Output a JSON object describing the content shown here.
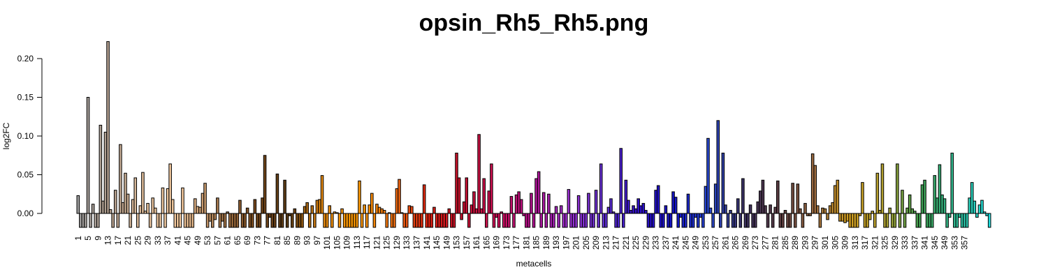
{
  "chart_data": {
    "type": "bar",
    "title": "opsin_Rh5_Rh5.png",
    "xlabel": "metacells",
    "ylabel": "log2FC",
    "ylim": [
      -0.02,
      0.225
    ],
    "yticks": [
      "0.00",
      "0.05",
      "0.10",
      "0.15",
      "0.20"
    ],
    "x_start": 1,
    "x_end": 357,
    "xtick_step": 4,
    "grid": false,
    "legend": "none",
    "values": [
      0.023,
      -0.018,
      -0.018,
      -0.018,
      0.15,
      -0.018,
      0.012,
      -0.018,
      -0.018,
      0.114,
      0.016,
      0.105,
      0.222,
      0.005,
      -0.018,
      0.03,
      -0.018,
      0.089,
      0.014,
      0.052,
      0.025,
      -0.018,
      0.018,
      0.046,
      -0.018,
      0.01,
      0.053,
      0.003,
      0.013,
      -0.018,
      0.02,
      0.007,
      -0.018,
      -0.018,
      0.033,
      -0.018,
      0.032,
      0.064,
      0.018,
      -0.018,
      -0.018,
      -0.018,
      0.033,
      -0.018,
      -0.018,
      -0.018,
      -0.018,
      0.019,
      0.009,
      0.008,
      0.026,
      0.039,
      -0.018,
      -0.01,
      -0.018,
      -0.008,
      0.02,
      -0.018,
      -0.01,
      -0.018,
      0.002,
      -0.018,
      -0.018,
      -0.018,
      -0.018,
      0.017,
      -0.018,
      -0.018,
      0.007,
      -0.018,
      -0.018,
      0.018,
      -0.018,
      -0.018,
      0.02,
      0.075,
      -0.018,
      -0.005,
      -0.018,
      -0.018,
      0.051,
      -0.018,
      -0.018,
      0.043,
      -0.018,
      -0.003,
      -0.018,
      0.006,
      -0.018,
      -0.018,
      -0.018,
      0.009,
      0.014,
      -0.018,
      0.01,
      -0.018,
      0.017,
      0.018,
      0.049,
      -0.018,
      -0.018,
      0.01,
      -0.018,
      0.002,
      0.001,
      -0.018,
      0.006,
      -0.018,
      -0.018,
      -0.018,
      -0.018,
      -0.018,
      -0.018,
      0.042,
      -0.018,
      0.011,
      -0.018,
      0.011,
      0.026,
      -0.018,
      0.012,
      0.008,
      0.006,
      0.004,
      -0.018,
      0.001,
      -0.018,
      -0.018,
      0.032,
      0.044,
      0.001,
      -0.018,
      -0.018,
      0.01,
      0.009,
      -0.018,
      -0.018,
      -0.018,
      -0.018,
      0.037,
      -0.018,
      -0.018,
      -0.018,
      0.008,
      -0.018,
      -0.018,
      -0.018,
      -0.018,
      -0.018,
      0.006,
      -0.018,
      -0.018,
      0.078,
      0.046,
      -0.008,
      0.015,
      0.046,
      -0.018,
      0.011,
      0.028,
      0.006,
      0.102,
      0.006,
      0.045,
      -0.018,
      0.029,
      0.064,
      -0.018,
      -0.005,
      -0.018,
      0.002,
      -0.018,
      -0.018,
      -0.018,
      0.022,
      -0.018,
      0.024,
      0.028,
      0.018,
      -0.003,
      -0.018,
      -0.018,
      0.026,
      -0.018,
      0.045,
      0.054,
      -0.018,
      0.027,
      -0.018,
      0.025,
      -0.018,
      -0.018,
      0.009,
      -0.018,
      0.01,
      -0.018,
      -0.018,
      0.031,
      -0.018,
      -0.018,
      -0.018,
      0.023,
      -0.018,
      -0.018,
      -0.018,
      0.026,
      -0.018,
      -0.018,
      0.03,
      -0.018,
      0.064,
      -0.018,
      -0.018,
      0.008,
      0.019,
      0.002,
      -0.018,
      -0.018,
      0.084,
      -0.018,
      0.043,
      0.017,
      0.004,
      0.01,
      0.006,
      0.019,
      0.01,
      0.013,
      0.004,
      -0.018,
      -0.018,
      -0.018,
      0.03,
      0.036,
      -0.018,
      -0.018,
      0.01,
      -0.018,
      -0.018,
      0.028,
      0.021,
      -0.018,
      -0.005,
      -0.018,
      -0.018,
      0.025,
      -0.018,
      -0.018,
      -0.005,
      -0.018,
      -0.005,
      -0.018,
      0.035,
      0.097,
      0.007,
      -0.018,
      0.038,
      0.12,
      -0.018,
      0.078,
      0.011,
      -0.018,
      0.004,
      -0.018,
      -0.018,
      0.019,
      -0.018,
      0.045,
      -0.018,
      -0.018,
      0.011,
      -0.018,
      -0.018,
      0.015,
      0.029,
      0.043,
      0.01,
      -0.018,
      0.011,
      -0.018,
      0.008,
      0.042,
      -0.018,
      -0.018,
      0.004,
      -0.018,
      -0.018,
      0.039,
      -0.018,
      0.038,
      0.006,
      -0.018,
      0.013,
      -0.003,
      -0.003,
      0.077,
      0.062,
      0.01,
      -0.018,
      0.007,
      0.006,
      -0.008,
      0.01,
      0.014,
      0.036,
      0.043,
      -0.01,
      -0.01,
      -0.012,
      -0.01,
      -0.018,
      -0.018,
      -0.018,
      -0.018,
      -0.003,
      0.04,
      -0.018,
      -0.018,
      -0.008,
      0.003,
      -0.018,
      0.052,
      0.004,
      0.064,
      -0.018,
      -0.018,
      0.007,
      -0.018,
      -0.018,
      0.064,
      -0.018,
      0.03,
      -0.018,
      0.007,
      0.024,
      0.006,
      0.003,
      -0.018,
      -0.018,
      0.037,
      0.043,
      -0.018,
      -0.018,
      -0.018,
      0.049,
      0.02,
      0.063,
      0.024,
      0.019,
      -0.018,
      -0.005,
      0.078,
      -0.018,
      -0.018,
      -0.005,
      -0.018,
      -0.018,
      -0.018,
      0.02,
      0.04,
      0.016,
      -0.005,
      0.011,
      0.017,
      0.002,
      -0.003,
      -0.018
    ],
    "colors": {
      "bar_border": "#000000",
      "gradient_stops": [
        "#9e9e9e",
        "#b59f8c",
        "#e6c19b",
        "#f5c99c",
        "#a87a4e",
        "#7a4a1c",
        "#5a3a14",
        "#e88a10",
        "#ff9a00",
        "#f07010",
        "#e02010",
        "#c21030",
        "#d0105a",
        "#b01090",
        "#9a30d0",
        "#6030d0",
        "#3010c8",
        "#1414c8",
        "#2848d0",
        "#3a3060",
        "#5a3a40",
        "#9a6a40",
        "#d4a020",
        "#b0a030",
        "#40a050",
        "#30b890",
        "#20e0e0"
      ]
    }
  }
}
